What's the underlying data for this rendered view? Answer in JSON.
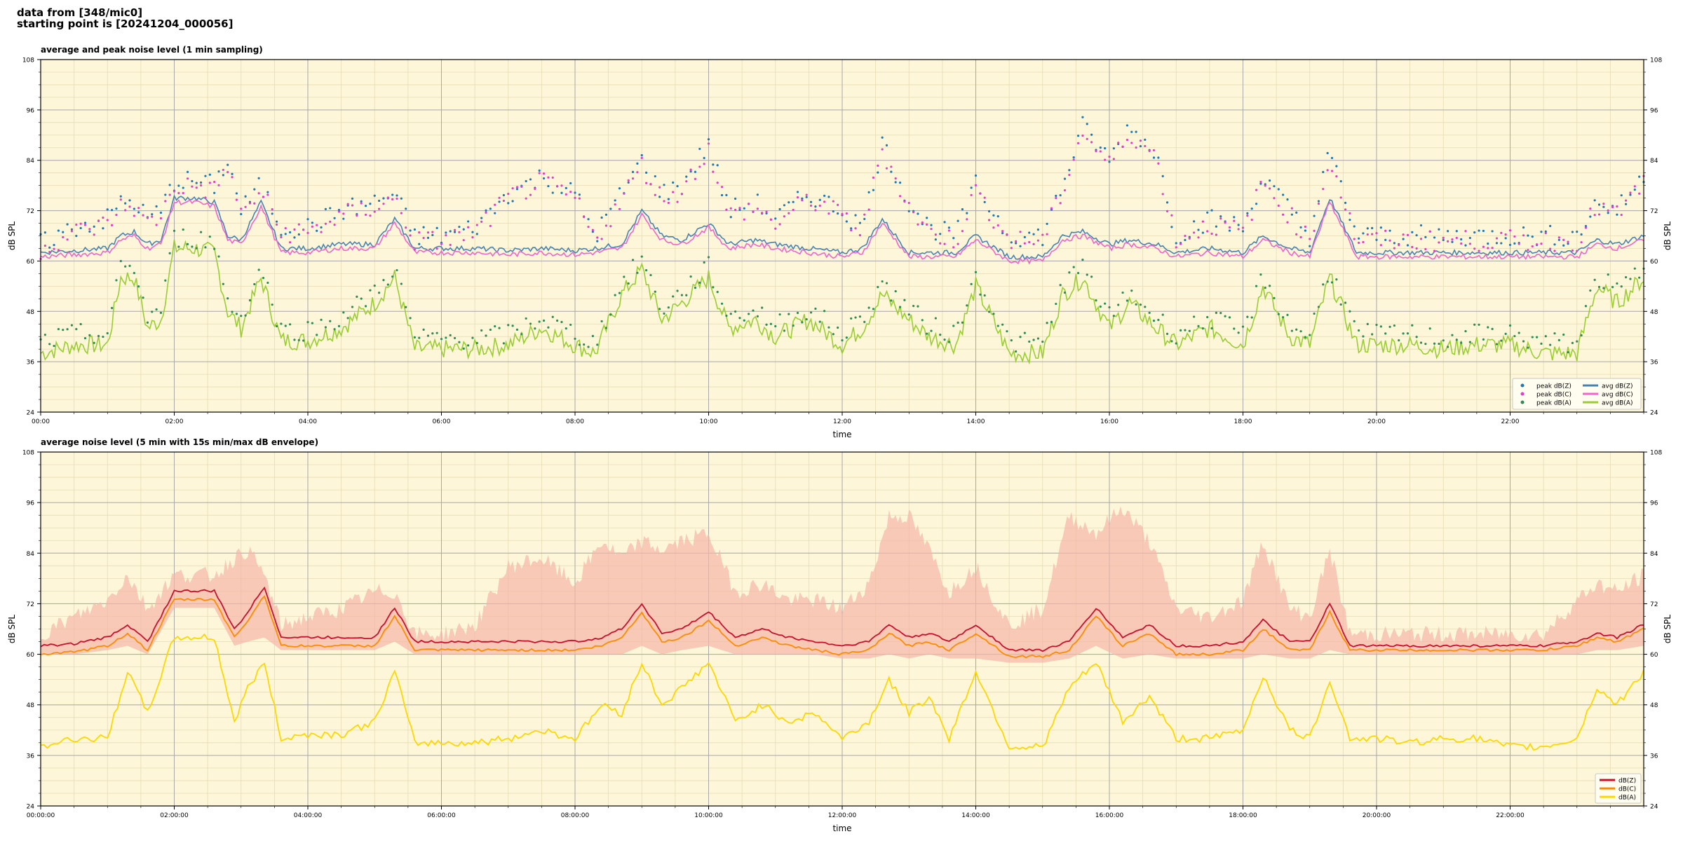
{
  "header": {
    "line1": "data from [348/mic0]",
    "line2": "starting point is [20241204_000056]"
  },
  "chart_data": [
    {
      "type": "scatter",
      "title": "average and peak noise level (1 min sampling)",
      "xlabel": "time",
      "ylabel": "dB SPL",
      "xlim": [
        "00:00",
        "24:00"
      ],
      "ylim": [
        24,
        108
      ],
      "yticks": [
        24,
        36,
        48,
        60,
        72,
        84,
        96,
        108
      ],
      "xtick_labels": [
        "00:00",
        "02:00",
        "04:00",
        "06:00",
        "08:00",
        "10:00",
        "12:00",
        "14:00",
        "16:00",
        "18:00",
        "20:00",
        "22:00"
      ],
      "grid": true,
      "legend_position": "lower-right",
      "background": "#fdf6d8",
      "series": [
        {
          "name": "peak dB(Z)",
          "kind": "points",
          "color": "#1f77b4"
        },
        {
          "name": "peak dB(C)",
          "kind": "points",
          "color": "#e040c8"
        },
        {
          "name": "peak dB(A)",
          "kind": "points",
          "color": "#2e8b57"
        },
        {
          "name": "avg dB(Z)",
          "kind": "line",
          "color": "#4682b4"
        },
        {
          "name": "avg dB(C)",
          "kind": "line",
          "color": "#ee66cc"
        },
        {
          "name": "avg dB(A)",
          "kind": "line",
          "color": "#9acd32"
        }
      ],
      "x_hours": [
        0,
        0.5,
        1,
        1.2,
        1.4,
        1.6,
        1.8,
        2,
        2.3,
        2.6,
        2.8,
        3,
        3.3,
        3.6,
        4,
        4.5,
        5,
        5.3,
        5.6,
        6,
        6.5,
        7,
        7.5,
        8,
        8.3,
        8.7,
        9,
        9.3,
        9.6,
        10,
        10.3,
        10.7,
        11,
        11.5,
        12,
        12.3,
        12.6,
        13,
        13.3,
        13.7,
        14,
        14.5,
        15,
        15.3,
        15.6,
        16,
        16.3,
        16.7,
        17,
        17.5,
        18,
        18.3,
        18.7,
        19,
        19.3,
        19.7,
        20,
        20.5,
        21,
        21.5,
        22,
        22.5,
        23,
        23.3,
        23.6,
        24
      ],
      "avg_z": [
        62,
        62.5,
        63,
        66,
        67,
        64,
        65,
        75,
        75,
        74,
        66,
        65,
        74,
        63,
        63,
        64,
        64,
        70,
        63,
        63,
        63,
        62.5,
        63,
        62.5,
        63,
        64,
        72,
        66,
        65,
        69,
        64,
        65,
        64,
        63,
        62,
        63,
        70,
        62,
        62,
        62,
        66,
        61,
        61,
        66,
        67,
        64,
        65,
        64,
        62,
        63,
        62,
        66,
        63,
        62,
        75,
        62,
        62,
        62,
        62,
        62,
        62,
        62,
        62,
        65,
        64,
        66
      ],
      "avg_c": [
        61,
        61.5,
        62,
        65,
        66,
        63,
        64,
        74,
        74,
        73,
        65,
        64,
        73,
        62,
        62,
        63,
        63,
        69,
        62,
        62,
        62,
        61.5,
        62,
        61.5,
        62,
        63,
        71,
        65,
        64,
        68,
        63,
        64,
        63,
        62,
        61,
        62,
        69,
        61,
        61,
        61,
        65,
        60,
        60,
        65,
        66,
        63,
        64,
        63,
        61,
        62,
        61,
        65,
        62,
        61,
        74,
        61,
        61,
        61,
        61,
        61,
        61,
        61,
        61,
        64,
        63,
        65
      ],
      "avg_a": [
        38,
        40,
        40,
        56,
        56,
        44,
        46,
        63,
        63,
        62,
        48,
        44,
        56,
        41,
        41,
        44,
        50,
        56,
        39,
        39,
        39,
        40,
        44,
        40,
        38,
        52,
        58,
        46,
        50,
        56,
        44,
        46,
        42,
        46,
        40,
        44,
        52,
        46,
        42,
        40,
        54,
        38,
        38,
        52,
        56,
        44,
        50,
        44,
        40,
        44,
        40,
        54,
        42,
        40,
        56,
        40,
        40,
        40,
        39,
        40,
        40,
        38,
        38,
        54,
        50,
        56
      ],
      "peak_z": [
        64,
        68,
        70,
        74,
        74,
        70,
        72,
        79,
        79,
        78,
        84,
        72,
        78,
        68,
        68,
        72,
        74,
        76,
        66,
        66,
        68,
        76,
        80,
        76,
        66,
        76,
        84,
        76,
        78,
        88,
        72,
        74,
        70,
        76,
        72,
        68,
        88,
        74,
        68,
        66,
        78,
        66,
        66,
        78,
        92,
        84,
        92,
        86,
        66,
        70,
        68,
        80,
        72,
        66,
        86,
        66,
        66,
        66,
        66,
        66,
        66,
        66,
        66,
        74,
        72,
        80
      ]
    },
    {
      "type": "line",
      "title": "average noise level (5 min with 15s min/max dB envelope)",
      "xlabel": "time",
      "ylabel": "dB SPL",
      "xlim": [
        "00:00:00",
        "24:00:00"
      ],
      "ylim": [
        24,
        108
      ],
      "yticks": [
        24,
        36,
        48,
        60,
        72,
        84,
        96,
        108
      ],
      "xtick_labels": [
        "00:00:00",
        "02:00:00",
        "04:00:00",
        "06:00:00",
        "08:00:00",
        "10:00:00",
        "12:00:00",
        "14:00:00",
        "16:00:00",
        "18:00:00",
        "20:00:00",
        "22:00:00"
      ],
      "grid": true,
      "legend_position": "lower-right",
      "background": "#fdf6d8",
      "envelope_color": "#f4b6a8",
      "series": [
        {
          "name": "dB(Z)",
          "color": "#c8102e"
        },
        {
          "name": "dB(C)",
          "color": "#ff8c00"
        },
        {
          "name": "dB(A)",
          "color": "#ffd700"
        }
      ],
      "x_hours": [
        0,
        0.5,
        1,
        1.3,
        1.6,
        2,
        2.3,
        2.6,
        2.9,
        3.1,
        3.35,
        3.6,
        4,
        4.5,
        5,
        5.3,
        5.6,
        6,
        6.5,
        7,
        7.5,
        8,
        8.4,
        8.7,
        9,
        9.3,
        9.6,
        10,
        10.4,
        10.8,
        11.2,
        11.6,
        12,
        12.4,
        12.7,
        13,
        13.3,
        13.6,
        14,
        14.5,
        15,
        15.4,
        15.8,
        16.2,
        16.6,
        17,
        17.5,
        18,
        18.3,
        18.7,
        19,
        19.3,
        19.6,
        20,
        20.5,
        21,
        21.5,
        22,
        22.5,
        23,
        23.3,
        23.6,
        24
      ],
      "db_z": [
        62,
        62.5,
        64,
        67,
        63,
        75,
        75,
        75,
        66,
        70,
        76,
        64,
        64,
        64,
        64,
        71,
        63,
        63,
        63,
        63,
        63,
        63,
        64,
        66,
        72,
        65,
        66,
        70,
        64,
        66,
        64,
        63,
        62,
        63,
        67,
        64,
        65,
        63,
        67,
        61,
        61,
        63,
        71,
        64,
        67,
        62,
        62,
        63,
        68,
        63,
        63,
        72,
        62,
        62,
        62,
        62,
        62,
        62,
        62,
        63,
        65,
        64,
        67
      ],
      "db_c": [
        60,
        60.5,
        62,
        65,
        61,
        73,
        73,
        73,
        64,
        68,
        74,
        62,
        62,
        62,
        62,
        69,
        61,
        61,
        61,
        61,
        61,
        61,
        62,
        64,
        70,
        63,
        64,
        68,
        62,
        64,
        62,
        61,
        60,
        61,
        65,
        62,
        63,
        61,
        65,
        59.5,
        59.5,
        61,
        69,
        62,
        65,
        60,
        60,
        61,
        66,
        61,
        61,
        70,
        61,
        61,
        61,
        61,
        61,
        61,
        61,
        62,
        64,
        63,
        66
      ],
      "db_a": [
        38,
        40,
        40,
        56,
        46,
        64,
        64,
        64,
        44,
        52,
        58,
        40,
        41,
        41,
        44,
        56,
        39,
        39,
        39,
        40,
        42,
        40,
        48,
        46,
        58,
        48,
        52,
        58,
        44,
        48,
        44,
        46,
        40,
        44,
        54,
        46,
        50,
        40,
        56,
        38,
        38,
        52,
        58,
        44,
        50,
        40,
        40,
        42,
        55,
        42,
        40,
        54,
        40,
        40,
        39,
        40,
        40,
        38,
        38,
        40,
        52,
        48,
        56
      ],
      "env_max": [
        64,
        68,
        72,
        78,
        70,
        78,
        78,
        78,
        82,
        84,
        78,
        66,
        68,
        70,
        74,
        74,
        64,
        64,
        66,
        80,
        82,
        76,
        86,
        82,
        86,
        84,
        86,
        88,
        74,
        76,
        72,
        72,
        70,
        76,
        92,
        92,
        84,
        74,
        80,
        66,
        70,
        92,
        88,
        94,
        86,
        70,
        68,
        72,
        86,
        70,
        68,
        84,
        64,
        64,
        64,
        64,
        64,
        64,
        64,
        72,
        76,
        74,
        78
      ],
      "env_min": [
        60,
        60,
        61,
        62,
        60,
        71,
        71,
        71,
        62,
        63,
        64,
        61,
        61,
        61,
        61,
        63,
        60,
        60,
        60,
        60,
        60,
        60,
        60,
        60,
        62,
        60,
        61,
        62,
        60,
        60,
        60,
        60,
        59,
        59,
        60,
        59,
        60,
        59,
        59,
        58,
        58,
        59,
        62,
        59,
        60,
        59,
        59,
        59,
        60,
        59,
        59,
        61,
        60,
        60,
        60,
        60,
        60,
        60,
        60,
        60,
        61,
        61,
        62
      ]
    }
  ]
}
